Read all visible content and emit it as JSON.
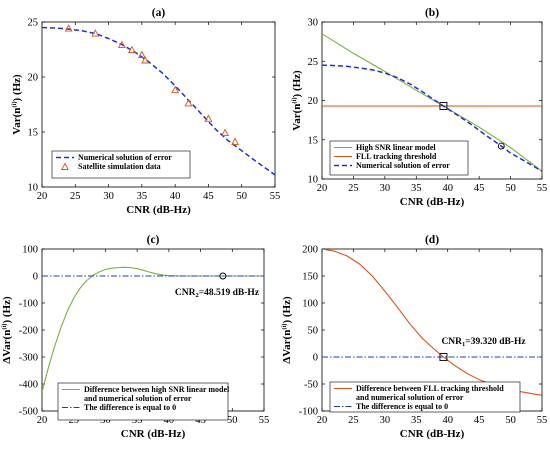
{
  "colors": {
    "blue": "#1f2fd6",
    "green": "#77b43a",
    "orange": "#d95319",
    "red_marker": "#d95319",
    "threshold_blue": "#1f3fb0"
  },
  "chart_data": [
    {
      "id": "a",
      "type": "line",
      "title": "(a)",
      "xlabel": "CNR (dB-Hz)",
      "ylabel": "Var(n",
      "ylabel_sup": "(i)",
      "ylabel_tail": ") (Hz)",
      "xlim": [
        20,
        55
      ],
      "ylim": [
        10,
        25
      ],
      "xticks": [
        "20",
        "25",
        "30",
        "35",
        "40",
        "45",
        "50",
        "55"
      ],
      "yticks": [
        "10",
        "15",
        "20",
        "25"
      ],
      "legend_position": "bottom-left",
      "series": [
        {
          "name": "Numerical solution of error",
          "style": "dashed",
          "color": "#1f2fd6",
          "x": [
            20,
            22,
            24,
            26,
            28,
            30,
            32,
            34,
            36,
            38,
            40,
            42,
            44,
            46,
            48,
            50,
            52,
            55
          ],
          "y": [
            24.5,
            24.45,
            24.35,
            24.2,
            23.95,
            23.5,
            22.95,
            22.25,
            21.4,
            20.4,
            19.2,
            17.9,
            16.6,
            15.3,
            14.2,
            13.3,
            12.4,
            11.1
          ]
        },
        {
          "name": "Satellite simulation data",
          "style": "triangle",
          "color": "#d95319",
          "x": [
            24,
            28,
            32,
            33.5,
            35,
            35.5,
            40,
            42,
            45,
            47.5,
            49
          ],
          "y": [
            24.4,
            23.95,
            22.9,
            22.45,
            22.0,
            21.5,
            18.8,
            17.6,
            16.2,
            14.9,
            14.1
          ]
        }
      ]
    },
    {
      "id": "b",
      "type": "line",
      "title": "(b)",
      "xlabel": "CNR (dB-Hz)",
      "ylabel": "Var(n",
      "ylabel_sup": "(i)",
      "ylabel_tail": ") (Hz)",
      "xlim": [
        20,
        55
      ],
      "ylim": [
        10,
        30
      ],
      "xticks": [
        "20",
        "25",
        "30",
        "35",
        "40",
        "45",
        "50",
        "55"
      ],
      "yticks": [
        "10",
        "15",
        "20",
        "25",
        "30"
      ],
      "legend_position": "bottom-left",
      "series": [
        {
          "name": "High SNR linear model",
          "style": "solid",
          "color": "#77b43a",
          "x": [
            20,
            25,
            30,
            35,
            39.32,
            45,
            50,
            55
          ],
          "y": [
            28.5,
            26.0,
            23.7,
            21.3,
            19.3,
            16.6,
            14.0,
            11.0
          ]
        },
        {
          "name": "FLL tracking threshold",
          "style": "solid",
          "color": "#d95319",
          "x": [
            20,
            55
          ],
          "y": [
            19.3,
            19.3
          ]
        },
        {
          "name": "Numerical solution of error",
          "style": "dashed",
          "color": "#1f2fd6",
          "x": [
            20,
            22,
            24,
            26,
            28,
            30,
            32,
            34,
            36,
            38,
            39.32,
            42,
            44,
            46,
            48.519,
            50,
            52,
            55
          ],
          "y": [
            24.5,
            24.45,
            24.35,
            24.15,
            23.9,
            23.5,
            22.9,
            22.1,
            21.1,
            20.0,
            19.3,
            17.9,
            16.8,
            15.6,
            14.2,
            13.3,
            12.4,
            11.0
          ]
        }
      ],
      "markers": [
        {
          "shape": "square",
          "x": 39.32,
          "y": 19.3
        },
        {
          "shape": "circle",
          "x": 48.519,
          "y": 14.2
        }
      ]
    },
    {
      "id": "c",
      "type": "line",
      "title": "(c)",
      "xlabel": "CNR (dB-Hz)",
      "ylabel": "ΔVar(n",
      "ylabel_sup": "(i)",
      "ylabel_tail": ") (Hz)",
      "xlim": [
        20,
        55
      ],
      "ylim": [
        -500,
        100
      ],
      "xticks": [
        "20",
        "25",
        "30",
        "35",
        "40",
        "45",
        "50",
        "55"
      ],
      "yticks": [
        "-500",
        "-400",
        "-300",
        "-200",
        "-100",
        "0",
        "100"
      ],
      "legend_position": "bottom-right",
      "annotation": {
        "text": "CNR",
        "sub": "2",
        "tail": "=48.519 dB-Hz",
        "x": 48.519,
        "y": 0
      },
      "series": [
        {
          "name": "Difference between high SNR linear model and numerical solution of error",
          "legend_lines": [
            "Difference between high SNR linear model",
            "and numerical solution of error"
          ],
          "style": "solid",
          "color": "#77b43a",
          "x": [
            20,
            21,
            22,
            23,
            24,
            25,
            26,
            27,
            28,
            29,
            30,
            31,
            32,
            33,
            34,
            35,
            36,
            37,
            38,
            39,
            40,
            42,
            44,
            46,
            48,
            50,
            52,
            55
          ],
          "y": [
            -430,
            -340,
            -260,
            -190,
            -130,
            -82,
            -45,
            -18,
            2,
            15,
            24,
            29,
            31,
            32,
            31,
            27,
            21,
            14,
            8,
            4,
            1,
            0,
            0,
            0,
            0,
            0,
            0,
            0
          ]
        },
        {
          "name": "The difference is equal to 0",
          "style": "dashdot",
          "color": "#1f3fb0",
          "x": [
            20,
            55
          ],
          "y": [
            0,
            0
          ]
        }
      ],
      "markers": [
        {
          "shape": "circle",
          "x": 48.519,
          "y": 0
        }
      ]
    },
    {
      "id": "d",
      "type": "line",
      "title": "(d)",
      "xlabel": "CNR (dB-Hz)",
      "ylabel": "ΔVar(n",
      "ylabel_sup": "(i)",
      "ylabel_tail": ") (Hz)",
      "xlim": [
        20,
        55
      ],
      "ylim": [
        -100,
        200
      ],
      "xticks": [
        "20",
        "25",
        "30",
        "35",
        "40",
        "45",
        "50",
        "55"
      ],
      "yticks": [
        "-100",
        "-50",
        "0",
        "50",
        "100",
        "150",
        "200"
      ],
      "legend_position": "bottom-right",
      "annotation": {
        "text": "CNR",
        "sub": "1",
        "tail": "=39.320 dB-Hz",
        "x": 39.32,
        "y": 0
      },
      "series": [
        {
          "name": "Difference between FLL tracking threshold and numerical solution of error",
          "legend_lines": [
            "Difference between FLL tracking threshold",
            "and numerical solution of error"
          ],
          "style": "solid",
          "color": "#d95319",
          "x": [
            20,
            22,
            24,
            26,
            28,
            30,
            32,
            34,
            36,
            38,
            39.32,
            41,
            43,
            45,
            47,
            49,
            51,
            53,
            55
          ],
          "y": [
            200,
            196,
            187,
            172,
            150,
            122,
            92,
            61,
            34,
            13,
            0,
            -15,
            -30,
            -42,
            -51,
            -58,
            -63,
            -67,
            -71
          ]
        },
        {
          "name": "The difference is equal to 0",
          "style": "dashdot",
          "color": "#1f3fb0",
          "x": [
            20,
            55
          ],
          "y": [
            0,
            0
          ]
        }
      ],
      "markers": [
        {
          "shape": "square",
          "x": 39.32,
          "y": 0
        }
      ]
    }
  ]
}
